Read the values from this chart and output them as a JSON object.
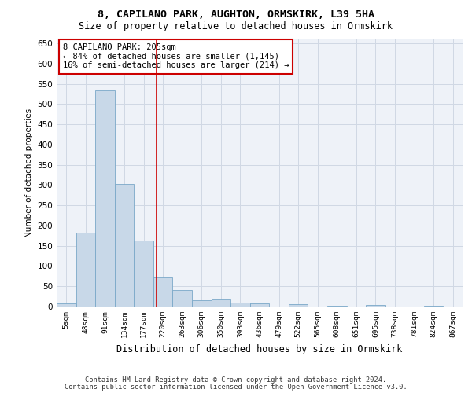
{
  "title1": "8, CAPILANO PARK, AUGHTON, ORMSKIRK, L39 5HA",
  "title2": "Size of property relative to detached houses in Ormskirk",
  "xlabel": "Distribution of detached houses by size in Ormskirk",
  "ylabel": "Number of detached properties",
  "bar_labels": [
    "5sqm",
    "48sqm",
    "91sqm",
    "134sqm",
    "177sqm",
    "220sqm",
    "263sqm",
    "306sqm",
    "350sqm",
    "393sqm",
    "436sqm",
    "479sqm",
    "522sqm",
    "565sqm",
    "608sqm",
    "651sqm",
    "695sqm",
    "738sqm",
    "781sqm",
    "824sqm",
    "867sqm"
  ],
  "bar_values": [
    8,
    183,
    533,
    303,
    163,
    72,
    40,
    15,
    18,
    10,
    8,
    0,
    5,
    0,
    2,
    0,
    3,
    0,
    0,
    2,
    0
  ],
  "bar_color": "#c8d8e8",
  "bar_edgecolor": "#7aa8c8",
  "grid_color": "#d0d8e4",
  "background_color": "#eef2f8",
  "annotation_text": "8 CAPILANO PARK: 205sqm\n← 84% of detached houses are smaller (1,145)\n16% of semi-detached houses are larger (214) →",
  "redline_x": 4.65,
  "annotation_box_color": "#ffffff",
  "annotation_box_edgecolor": "#cc0000",
  "ylim": [
    0,
    660
  ],
  "yticks": [
    0,
    50,
    100,
    150,
    200,
    250,
    300,
    350,
    400,
    450,
    500,
    550,
    600,
    650
  ],
  "footer1": "Contains HM Land Registry data © Crown copyright and database right 2024.",
  "footer2": "Contains public sector information licensed under the Open Government Licence v3.0."
}
